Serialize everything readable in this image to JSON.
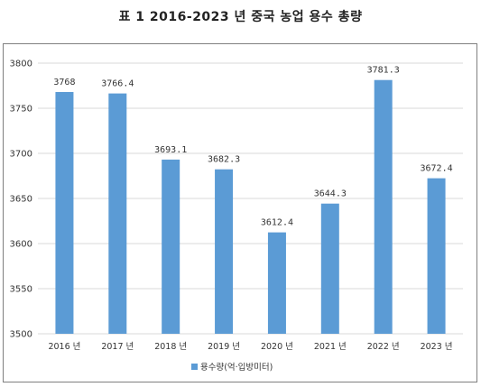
{
  "title": "표 1   2016-2023 년 중국 농업 용수 총량",
  "chart_data": {
    "type": "bar",
    "categories": [
      "2016 년",
      "2017 년",
      "2018 년",
      "2019 년",
      "2020 년",
      "2021 년",
      "2022 년",
      "2023 년"
    ],
    "series": [
      {
        "name": "용수량(억·입방미터)",
        "values": [
          3768,
          3766.4,
          3693.1,
          3682.3,
          3612.4,
          3644.3,
          3781.3,
          3672.4
        ],
        "labels": [
          "3768",
          "3766.4",
          "3693.1",
          "3682.3",
          "3612.4",
          "3644.3",
          "3781.3",
          "3672.4"
        ]
      }
    ],
    "yticks": [
      "3500",
      "3550",
      "3600",
      "3650",
      "3700",
      "3750",
      "3800"
    ],
    "ylim": [
      3500,
      3800
    ],
    "grid": true,
    "legend_position": "bottom",
    "bar_color": "#5b9bd5",
    "grid_color": "#d9d9d9"
  }
}
